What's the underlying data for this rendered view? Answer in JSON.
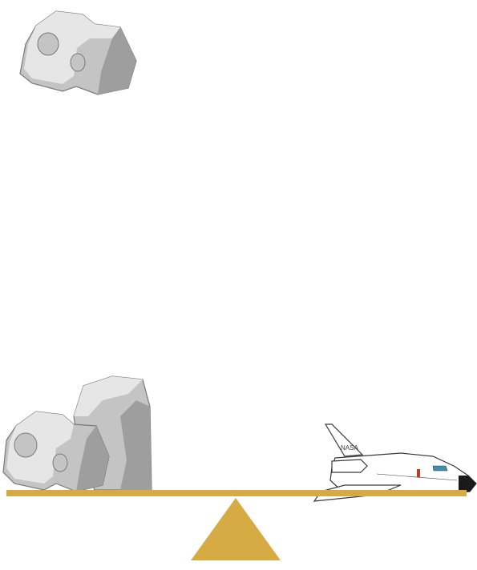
{
  "scene": {
    "background": "#ffffff",
    "beam_color": "#d6ab43",
    "fulcrum_color": "#d6ab43",
    "rock_colors": {
      "light": "#e6e6e6",
      "mid": "#c4c4c4",
      "shadow": "#9e9e9e",
      "outline": "#7a7a7a"
    },
    "shuttle_colors": {
      "body": "#ffffff",
      "outline": "#3a3a3a",
      "nose": "#1a1a1a",
      "window": "#3f8fb0",
      "accent": "#c0392b"
    },
    "shuttle_text": "NASA"
  },
  "items": {
    "floating": [
      "rock"
    ],
    "beam_left": [
      "rock",
      "tall-rock"
    ],
    "beam_right": [
      "space-shuttle"
    ]
  }
}
